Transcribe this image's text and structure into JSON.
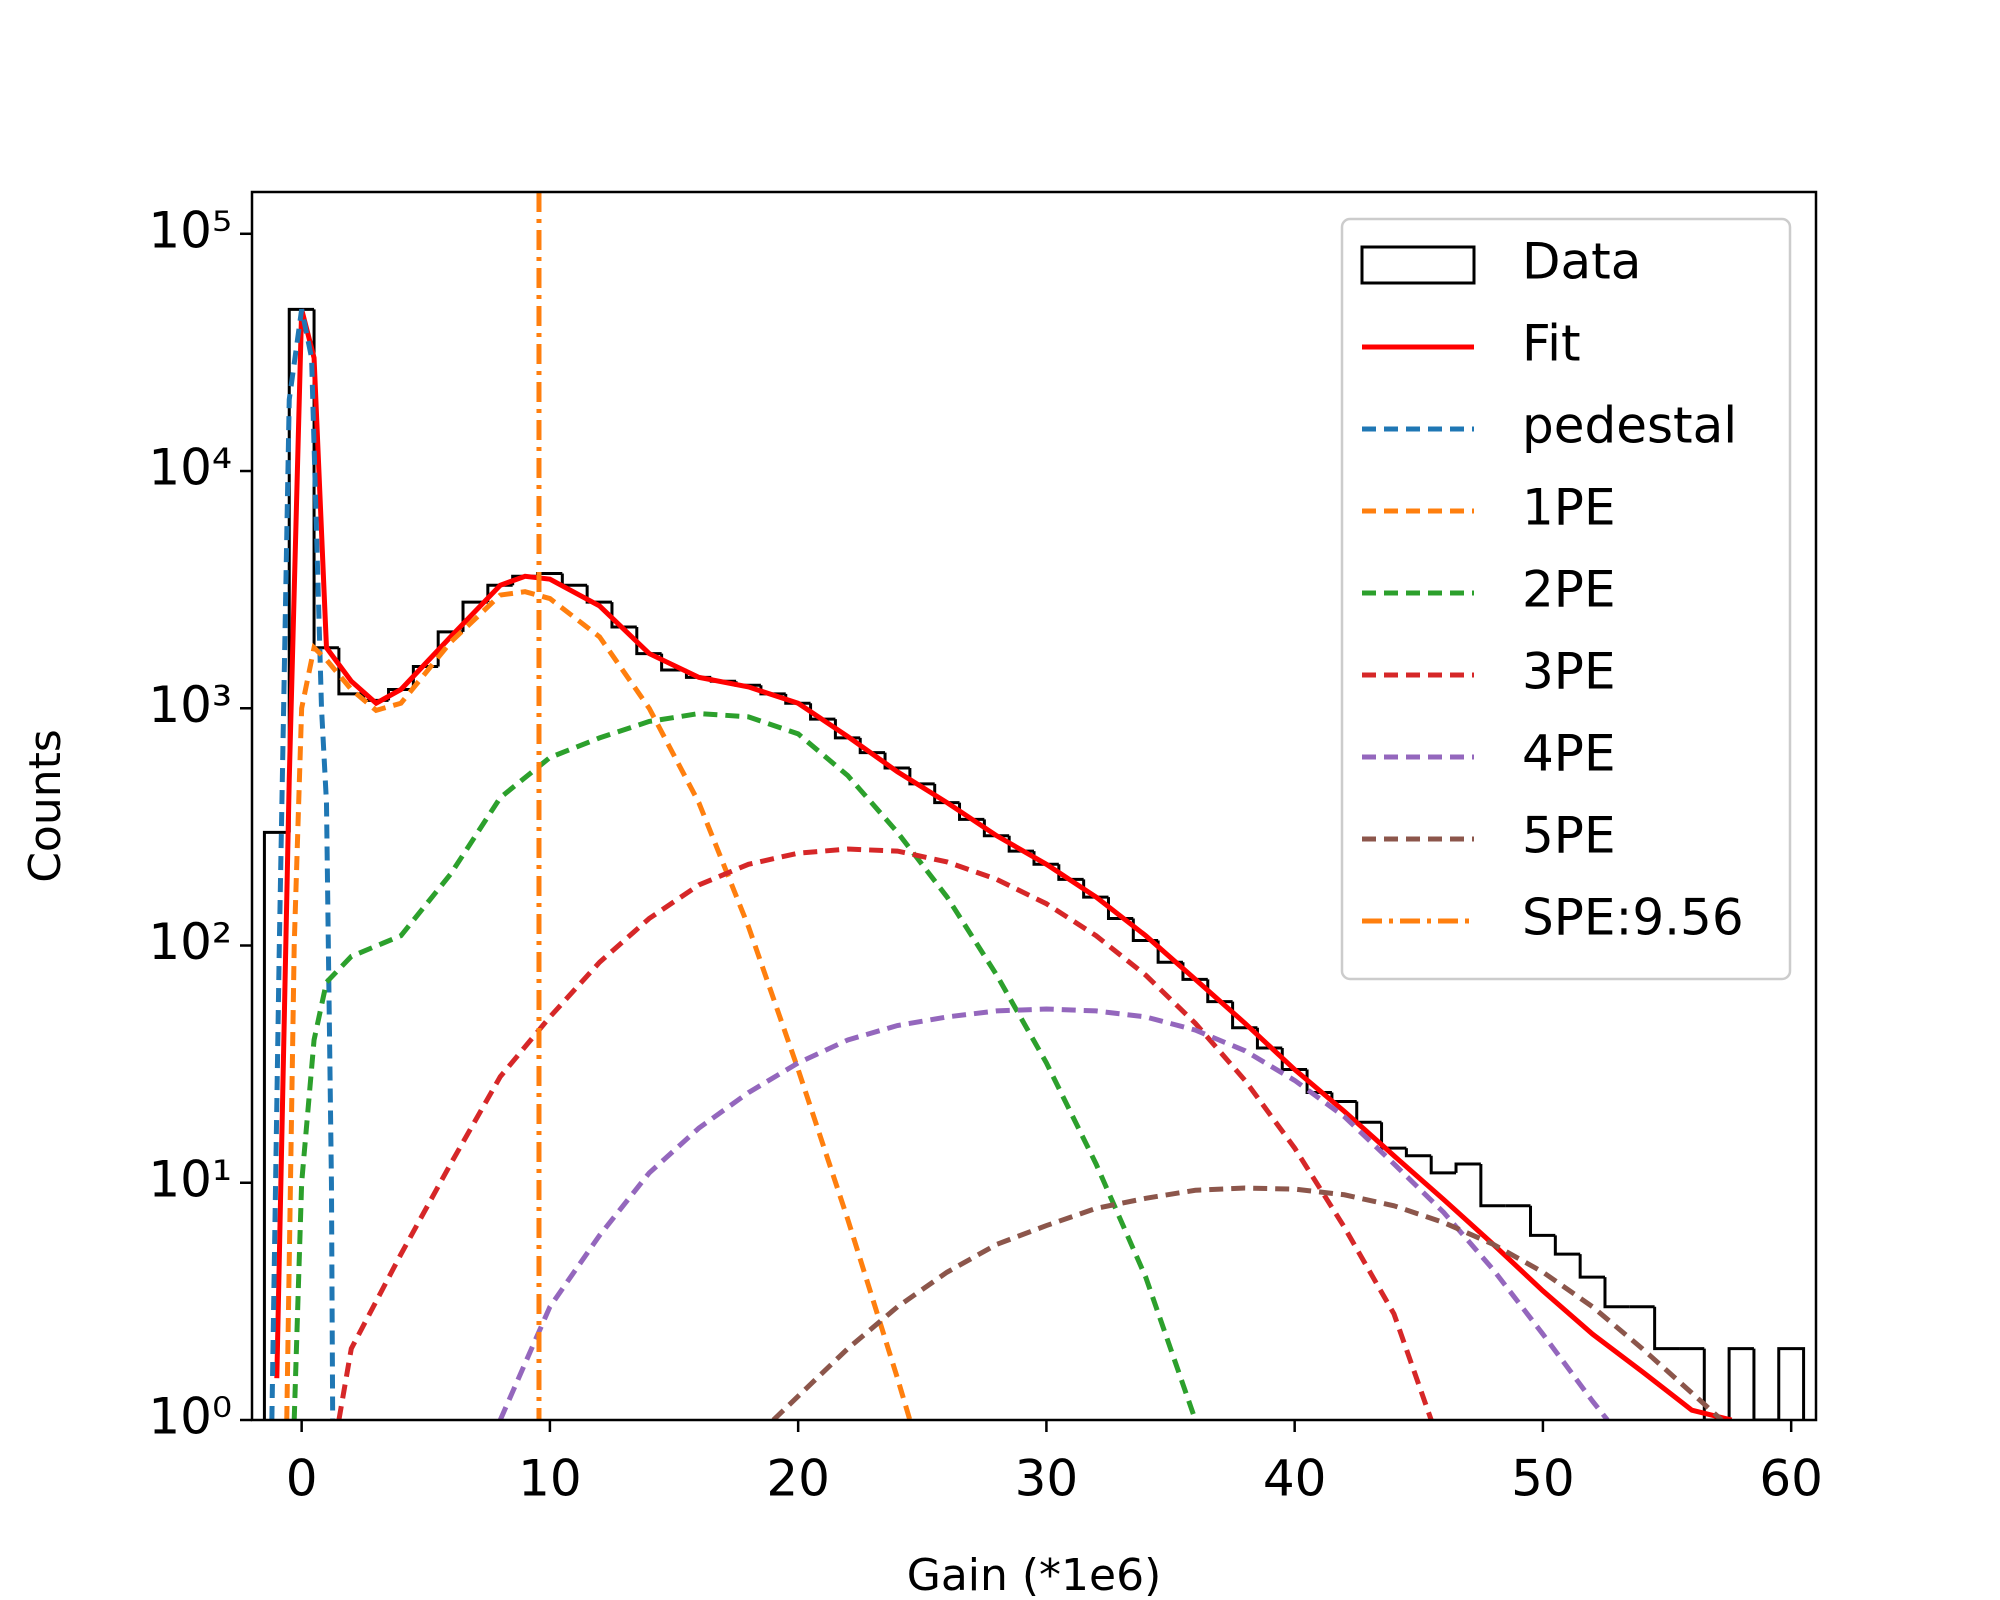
{
  "chart_data": {
    "type": "histogram-fit",
    "xlabel": "Gain (*1e6)",
    "ylabel": "Counts",
    "xlim": [
      -2,
      61
    ],
    "xticks": [
      0,
      10,
      20,
      30,
      40,
      50,
      60
    ],
    "ylim": [
      1,
      150000
    ],
    "log_y": true,
    "yticks": [
      {
        "value": 1,
        "label": "10⁰"
      },
      {
        "value": 10,
        "label": "10¹"
      },
      {
        "value": 100,
        "label": "10²"
      },
      {
        "value": 1000,
        "label": "10³"
      },
      {
        "value": 10000,
        "label": "10⁴"
      },
      {
        "value": 100000,
        "label": "10⁵"
      }
    ],
    "legend": "upper right",
    "hist": {
      "name": "Data",
      "color": "#000000",
      "bins": [
        -1.5,
        -0.5,
        0.5,
        1.5,
        2.5,
        3.5,
        4.5,
        5.5,
        6.5,
        7.5,
        8.5,
        9.5,
        10.5,
        11.5,
        12.5,
        13.5,
        14.5,
        15.5,
        16.5,
        17.5,
        18.5,
        19.5,
        20.5,
        21.5,
        22.5,
        23.5,
        24.5,
        25.5,
        26.5,
        27.5,
        28.5,
        29.5,
        30.5,
        31.5,
        32.5,
        33.5,
        34.5,
        35.5,
        36.5,
        37.5,
        38.5,
        39.5,
        40.5,
        41.5,
        42.5,
        43.5,
        44.5,
        45.5,
        46.5,
        47.5,
        48.5,
        49.5,
        50.5,
        51.5,
        52.5,
        53.5,
        54.5,
        55.5,
        56.5,
        57.5,
        58.5,
        59.5,
        60.5
      ],
      "counts": [
        300,
        48000,
        1800,
        1150,
        1080,
        1200,
        1500,
        2100,
        2800,
        3300,
        3600,
        3700,
        3300,
        2800,
        2200,
        1700,
        1450,
        1350,
        1300,
        1250,
        1150,
        1050,
        900,
        750,
        650,
        560,
        480,
        400,
        340,
        290,
        250,
        220,
        190,
        160,
        130,
        105,
        85,
        72,
        58,
        45,
        37,
        30,
        24,
        22,
        18,
        14,
        13,
        11,
        12,
        8,
        8,
        6,
        5,
        4,
        3,
        3,
        2,
        2,
        1,
        2,
        1,
        2
      ]
    },
    "series": [
      {
        "name": "Fit",
        "color": "#ff0000",
        "linestyle": "solid",
        "x": [
          -1,
          -0.5,
          0,
          0.5,
          1,
          2,
          3,
          4,
          6,
          8,
          9,
          10,
          12,
          14,
          16,
          18,
          20,
          22,
          24,
          26,
          28,
          30,
          32,
          34,
          36,
          38,
          40,
          42,
          44,
          46,
          48,
          50,
          52,
          54,
          56,
          57.6
        ],
        "values": [
          1.5,
          500,
          48000,
          30000,
          1800,
          1300,
          1050,
          1200,
          2000,
          3300,
          3600,
          3500,
          2700,
          1700,
          1350,
          1230,
          1050,
          760,
          540,
          400,
          290,
          220,
          160,
          110,
          72,
          47,
          30,
          20,
          13,
          8.5,
          5.5,
          3.5,
          2.3,
          1.6,
          1.1,
          1
        ]
      },
      {
        "name": "pedestal",
        "color": "#1f77b4",
        "linestyle": "dashed",
        "x": [
          -1.2,
          -0.9,
          -0.5,
          0,
          0.4,
          0.8,
          1,
          1.2,
          1.25
        ],
        "values": [
          1,
          100,
          20000,
          48000,
          30000,
          1000,
          400,
          10,
          1
        ]
      },
      {
        "name": "1PE",
        "color": "#ff7f0e",
        "linestyle": "dashed",
        "x": [
          -0.6,
          -0.3,
          0,
          0.5,
          1,
          2,
          3,
          4,
          6,
          8,
          9,
          10,
          12,
          14,
          16,
          18,
          20,
          22,
          24,
          24.5
        ],
        "values": [
          1,
          100,
          1000,
          1800,
          1600,
          1200,
          980,
          1050,
          1900,
          3000,
          3100,
          2900,
          2000,
          1000,
          400,
          120,
          30,
          7,
          1.5,
          1
        ]
      },
      {
        "name": "2PE",
        "color": "#2ca02c",
        "linestyle": "dashed",
        "x": [
          -0.3,
          0,
          0.5,
          1,
          2,
          4,
          6,
          8,
          10,
          12,
          14,
          16,
          18,
          20,
          22,
          24,
          26,
          28,
          30,
          32,
          34,
          36
        ],
        "values": [
          1,
          10,
          40,
          70,
          90,
          110,
          200,
          420,
          620,
          750,
          880,
          950,
          920,
          780,
          520,
          300,
          160,
          75,
          32,
          12,
          4,
          1
        ]
      },
      {
        "name": "3PE",
        "color": "#d62728",
        "linestyle": "dashed",
        "x": [
          1.5,
          2,
          4,
          6,
          8,
          10,
          12,
          14,
          16,
          18,
          20,
          22,
          24,
          26,
          28,
          30,
          32,
          34,
          36,
          38,
          40,
          42,
          44,
          45.5
        ],
        "values": [
          1,
          2,
          5,
          12,
          28,
          50,
          85,
          130,
          180,
          220,
          245,
          255,
          250,
          225,
          190,
          150,
          110,
          75,
          47,
          27,
          14,
          6.5,
          2.8,
          1
        ]
      },
      {
        "name": "4PE",
        "color": "#9467bd",
        "linestyle": "dashed",
        "x": [
          8,
          10,
          12,
          14,
          16,
          18,
          20,
          22,
          24,
          26,
          28,
          30,
          32,
          34,
          36,
          38,
          40,
          42,
          44,
          46,
          48,
          50,
          52,
          52.6
        ],
        "values": [
          1,
          3,
          6,
          11,
          17,
          24,
          32,
          40,
          46,
          50,
          53,
          54,
          53,
          50,
          44,
          36,
          27,
          19,
          12,
          7.5,
          4.3,
          2.3,
          1.2,
          1
        ]
      },
      {
        "name": "5PE",
        "color": "#8c564b",
        "linestyle": "dashed",
        "x": [
          19,
          22,
          24,
          26,
          28,
          30,
          32,
          34,
          36,
          38,
          40,
          42,
          44,
          46,
          48,
          50,
          52,
          54,
          56,
          57.2
        ],
        "values": [
          1,
          2,
          3,
          4.2,
          5.5,
          6.6,
          7.8,
          8.6,
          9.3,
          9.5,
          9.4,
          8.9,
          8,
          6.8,
          5.5,
          4.2,
          3,
          2,
          1.3,
          1
        ]
      }
    ],
    "vline": {
      "name": "SPE:9.56",
      "x": 9.56,
      "color": "#ff7f0e",
      "linestyle": "dashdot"
    }
  }
}
